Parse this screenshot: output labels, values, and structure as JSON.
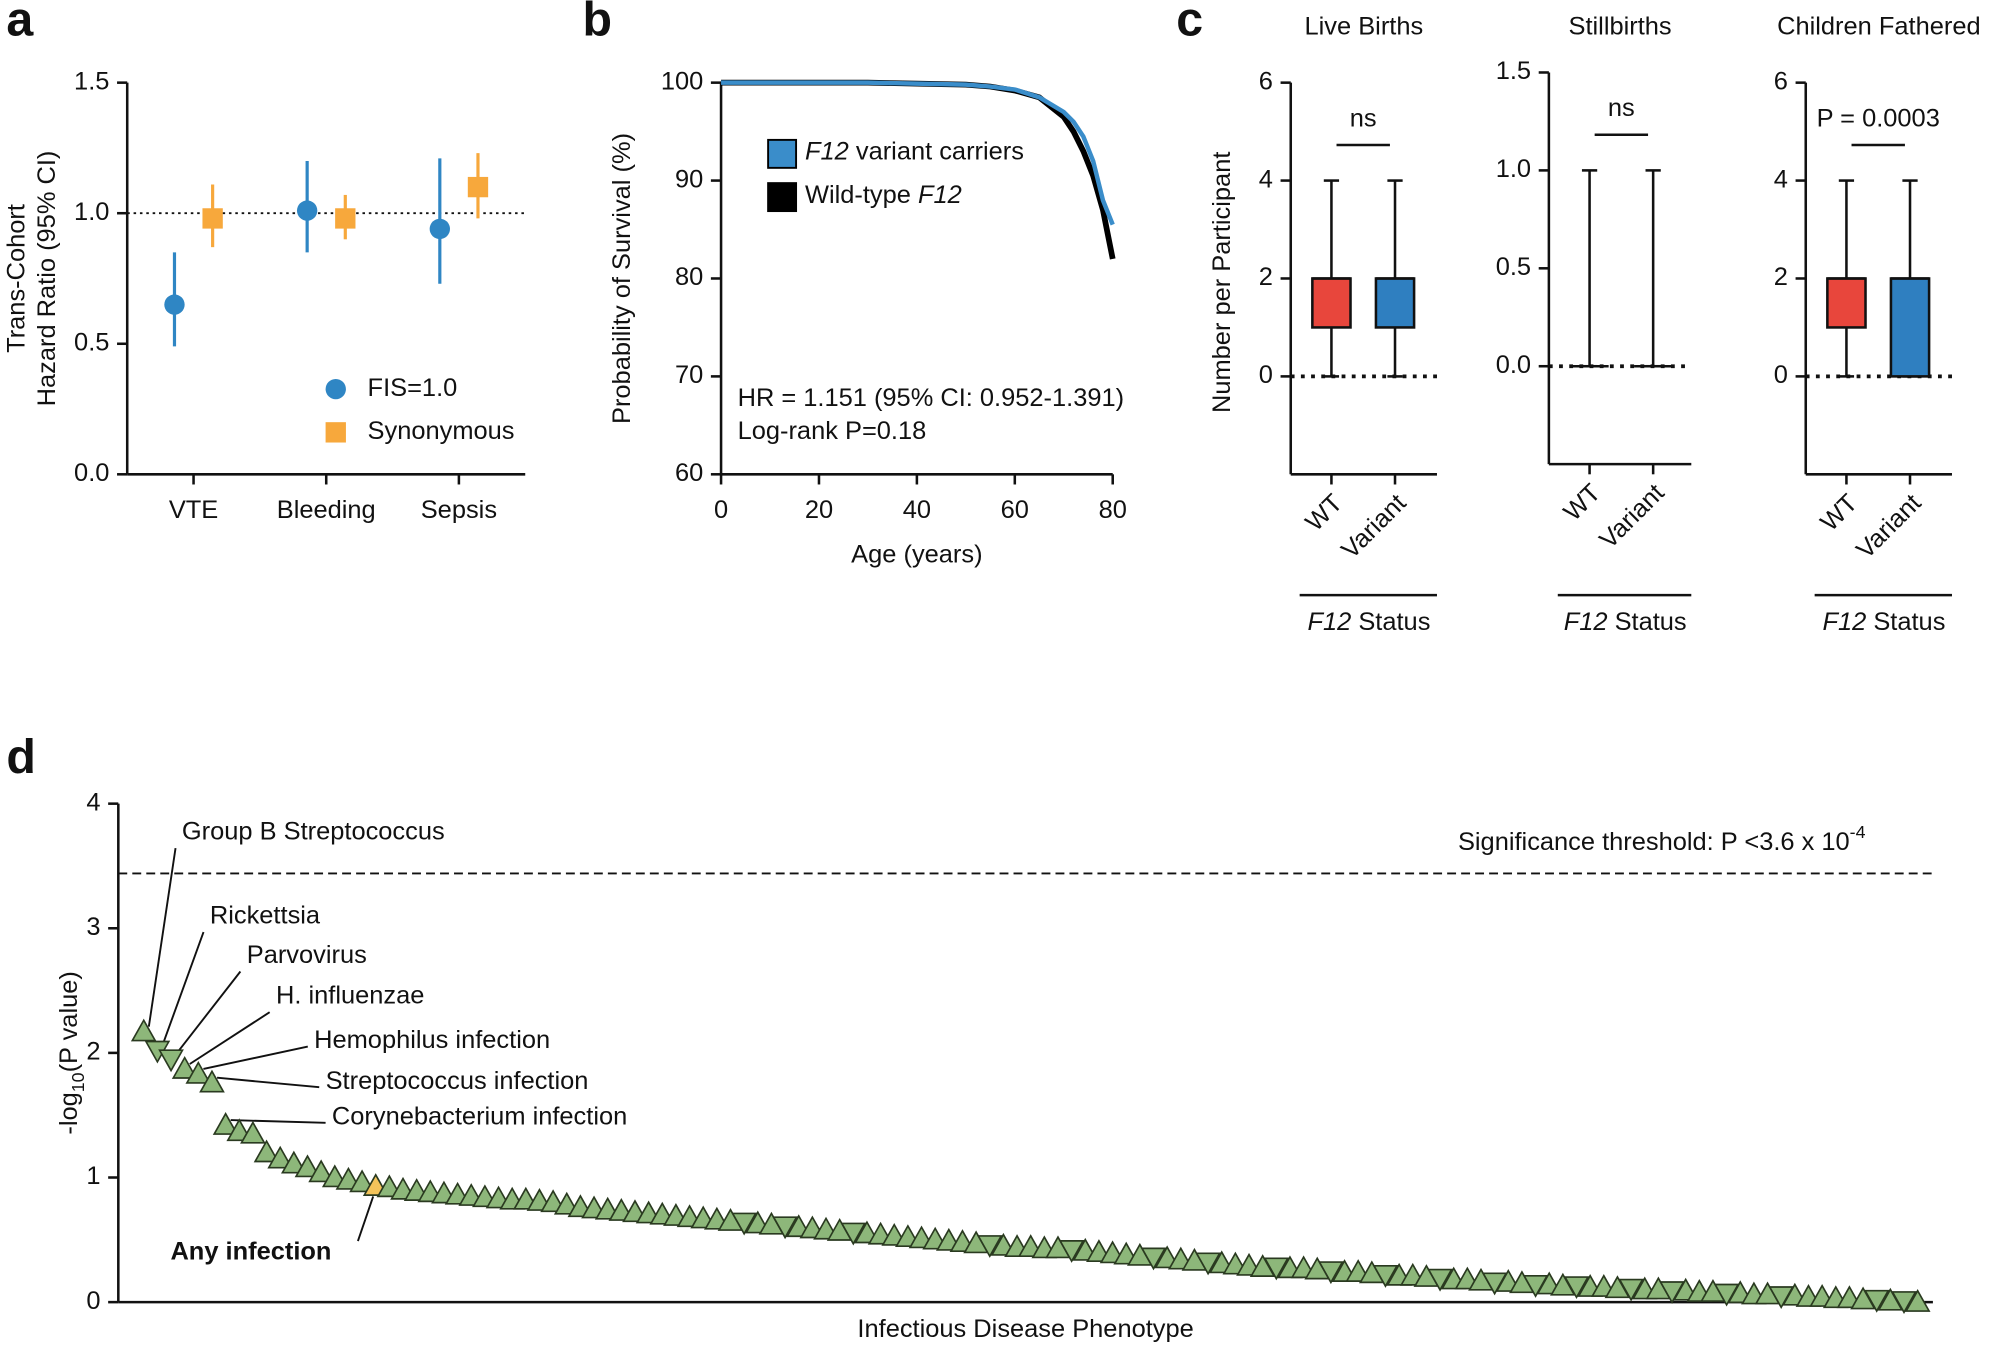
{
  "chart_data": [
    {
      "type": "errorbar",
      "panel": "a",
      "ylabel": [
        "Trans-Cohort",
        "Hazard Ratio (95% CI)"
      ],
      "categories": [
        "VTE",
        "Bleeding",
        "Sepsis"
      ],
      "series": [
        {
          "name": "FIS=1.0",
          "color": "#2f86c4",
          "marker": "circle",
          "values": [
            0.65,
            1.01,
            0.94
          ],
          "lower": [
            0.49,
            0.85,
            0.73
          ],
          "upper": [
            0.85,
            1.2,
            1.21
          ]
        },
        {
          "name": "Synonymous",
          "color": "#f7a83c",
          "marker": "square",
          "values": [
            0.98,
            0.98,
            1.1
          ],
          "lower": [
            0.87,
            0.9,
            0.98
          ],
          "upper": [
            1.11,
            1.07,
            1.23
          ]
        }
      ],
      "ylim": [
        0,
        1.5
      ],
      "yticks": [
        {
          "value": 0,
          "label": "0.0"
        },
        {
          "value": 0.5,
          "label": "0.5"
        },
        {
          "value": 1,
          "label": "1.0"
        },
        {
          "value": 1.5,
          "label": "1.5"
        }
      ],
      "hline": 1,
      "legend": "lower right"
    },
    {
      "type": "line",
      "panel": "b",
      "xlabel": "Age (years)",
      "ylabel": "Probability of Survival (%)",
      "x": [
        0,
        10,
        20,
        30,
        40,
        50,
        55,
        60,
        65,
        70,
        72,
        74,
        76,
        78,
        80
      ],
      "series": [
        {
          "name": "Wild-type F12",
          "color": "#000000",
          "values": [
            100,
            100,
            100,
            100,
            99.9,
            99.8,
            99.6,
            99.2,
            98.5,
            96.5,
            95,
            93,
            90.5,
            87,
            82
          ]
        },
        {
          "name": "F12 variant carriers",
          "color": "#3a8dca",
          "values": [
            100,
            100,
            100,
            100,
            99.9,
            99.8,
            99.6,
            99.3,
            98.5,
            97,
            96,
            94.5,
            92,
            88,
            85.5
          ]
        }
      ],
      "xlim": [
        0,
        80
      ],
      "xticks": [
        0,
        20,
        40,
        60,
        80
      ],
      "ylim": [
        60,
        100
      ],
      "yticks": [
        60,
        70,
        80,
        90,
        100
      ],
      "annotations": [
        "HR = 1.151 (95% CI: 0.952-1.391)",
        "Log-rank P=0.18"
      ],
      "legend": "upper left"
    },
    {
      "type": "box",
      "panel": "c",
      "title": "Live Births",
      "ylabel": "Number per Participant",
      "xlabel": "F12 Status",
      "categories": [
        "WT",
        "Variant"
      ],
      "colors": [
        "#e8463c",
        "#2f7fc0"
      ],
      "min": [
        0,
        0
      ],
      "q1": [
        1,
        1
      ],
      "median": [
        2,
        2
      ],
      "q3": [
        2,
        2
      ],
      "max": [
        4,
        4
      ],
      "ylim": [
        -2,
        6
      ],
      "yticks": [
        0,
        2,
        4,
        6
      ],
      "hline": 0,
      "annotation": "ns"
    },
    {
      "type": "box",
      "title": "Stillbirths",
      "xlabel": "F12 Status",
      "categories": [
        "WT",
        "Variant"
      ],
      "colors": [
        "#e8463c",
        "#2f7fc0"
      ],
      "min": [
        0,
        0
      ],
      "q1": [
        0,
        0
      ],
      "median": [
        0,
        0
      ],
      "q3": [
        0,
        0
      ],
      "max": [
        1,
        1
      ],
      "ylim": [
        -0.5,
        1.5
      ],
      "yticks": [
        {
          "value": 0,
          "label": "0.0"
        },
        {
          "value": 0.5,
          "label": "0.5"
        },
        {
          "value": 1,
          "label": "1.0"
        },
        {
          "value": 1.5,
          "label": "1.5"
        }
      ],
      "hline": 0,
      "annotation": "ns"
    },
    {
      "type": "box",
      "title": "Children Fathered",
      "xlabel": "F12 Status",
      "categories": [
        "WT",
        "Variant"
      ],
      "colors": [
        "#e8463c",
        "#2f7fc0"
      ],
      "min": [
        0,
        0
      ],
      "q1": [
        1,
        0
      ],
      "median": [
        2,
        2
      ],
      "q3": [
        2,
        2
      ],
      "max": [
        4,
        4
      ],
      "ylim": [
        -2,
        6
      ],
      "yticks": [
        0,
        2,
        4,
        6
      ],
      "hline": 0,
      "annotation": "P = 0.0003"
    },
    {
      "type": "scatter",
      "panel": "d",
      "xlabel": "Infectious Disease Phenotype",
      "ylabel": [
        "-log",
        "10",
        "(P value)"
      ],
      "ylim": [
        0,
        4
      ],
      "yticks": [
        0,
        1,
        2,
        3,
        4
      ],
      "hline": 3.44,
      "hline_label": "Significance threshold: P <3.6 x 10",
      "hline_label_sup": "-4",
      "color": "#8db77a",
      "highlight_color": "#f3c35a",
      "highlight_label": "Any infection",
      "values": [
        2.17,
        2.02,
        1.95,
        1.87,
        1.83,
        1.76,
        1.42,
        1.37,
        1.35,
        1.2,
        1.15,
        1.11,
        1.08,
        1.04,
        1.0,
        0.98,
        0.96,
        0.93,
        0.92,
        0.9,
        0.89,
        0.88,
        0.87,
        0.86,
        0.85,
        0.84,
        0.83,
        0.82,
        0.82,
        0.81,
        0.8,
        0.78,
        0.76,
        0.75,
        0.74,
        0.73,
        0.72,
        0.71,
        0.7,
        0.69,
        0.68,
        0.67,
        0.66,
        0.65,
        0.64,
        0.63,
        0.62,
        0.61,
        0.6,
        0.59,
        0.58,
        0.57,
        0.56,
        0.55,
        0.54,
        0.53,
        0.52,
        0.51,
        0.5,
        0.49,
        0.48,
        0.47,
        0.46,
        0.45,
        0.44,
        0.44,
        0.43,
        0.43,
        0.42,
        0.41,
        0.4,
        0.39,
        0.38,
        0.37,
        0.36,
        0.35,
        0.34,
        0.33,
        0.32,
        0.31,
        0.3,
        0.29,
        0.28,
        0.28,
        0.27,
        0.27,
        0.26,
        0.25,
        0.24,
        0.24,
        0.23,
        0.22,
        0.21,
        0.21,
        0.2,
        0.19,
        0.18,
        0.18,
        0.17,
        0.16,
        0.16,
        0.15,
        0.14,
        0.14,
        0.13,
        0.13,
        0.12,
        0.12,
        0.11,
        0.11,
        0.1,
        0.1,
        0.09,
        0.09,
        0.08,
        0.08,
        0.07,
        0.07,
        0.06,
        0.06,
        0.05,
        0.05,
        0.04,
        0.04,
        0.03,
        0.03,
        0.02,
        0.02,
        0.01,
        0.01,
        0.0
      ],
      "markers": [
        "up",
        "down",
        "down",
        "up",
        "up",
        "up",
        "up",
        "up",
        "up",
        "up",
        "up",
        "up",
        "up",
        "up",
        "up",
        "up",
        "up",
        "up",
        "up",
        "up",
        "up",
        "up",
        "up",
        "up",
        "up",
        "up",
        "up",
        "up",
        "up",
        "up",
        "up",
        "up",
        "up",
        "up",
        "up",
        "up",
        "up",
        "up",
        "up",
        "up",
        "up",
        "up",
        "up",
        "up",
        "down",
        "up",
        "up",
        "down",
        "up",
        "up",
        "up",
        "up",
        "down",
        "up",
        "up",
        "up",
        "up",
        "up",
        "up",
        "up",
        "up",
        "up",
        "down",
        "up",
        "up",
        "up",
        "up",
        "up",
        "down",
        "up",
        "up",
        "up",
        "up",
        "up",
        "down",
        "up",
        "up",
        "up",
        "down",
        "up",
        "up",
        "up",
        "up",
        "down",
        "up",
        "up",
        "up",
        "down",
        "up",
        "up",
        "up",
        "down",
        "up",
        "up",
        "up",
        "down",
        "up",
        "up",
        "up",
        "down",
        "up",
        "up",
        "down",
        "up",
        "up",
        "down",
        "up",
        "up",
        "up",
        "down",
        "up",
        "up",
        "down",
        "up",
        "up",
        "up",
        "down",
        "up",
        "up",
        "up",
        "down",
        "up",
        "up",
        "up",
        "up",
        "up",
        "up",
        "down",
        "up",
        "down",
        "up"
      ],
      "point_labels": [
        "Group B Streptococcus",
        "Rickettsia",
        "Parvovirus",
        "H. influenzae",
        "Hemophilus infection",
        "Streptococcus infection",
        "Corynebacterium infection",
        null,
        null,
        null,
        null,
        null,
        null,
        null,
        null,
        null,
        null,
        "Any infection",
        null,
        null,
        null,
        null,
        null,
        null,
        null,
        null,
        null,
        null,
        null,
        null,
        null,
        null,
        null,
        null,
        null,
        null,
        null,
        null,
        null,
        null,
        null,
        null,
        null,
        null,
        null,
        null,
        null,
        null,
        null,
        null,
        null,
        null,
        null,
        null,
        null,
        null,
        null,
        null,
        null,
        null,
        null,
        null,
        null,
        null,
        null,
        null,
        null,
        null,
        null,
        null,
        null,
        null,
        null,
        null,
        null,
        null,
        null,
        null,
        null,
        null,
        null,
        null,
        null,
        null,
        null,
        null,
        null,
        null,
        null,
        null,
        null,
        null,
        null,
        null,
        null,
        null,
        null,
        null,
        null,
        null,
        null,
        null,
        null,
        null,
        null,
        null,
        null,
        null,
        null,
        null,
        null,
        null,
        null,
        null,
        null,
        null,
        null,
        null,
        null,
        null,
        null,
        null,
        null,
        null,
        null,
        null,
        null,
        null,
        null,
        null,
        null
      ]
    }
  ]
}
